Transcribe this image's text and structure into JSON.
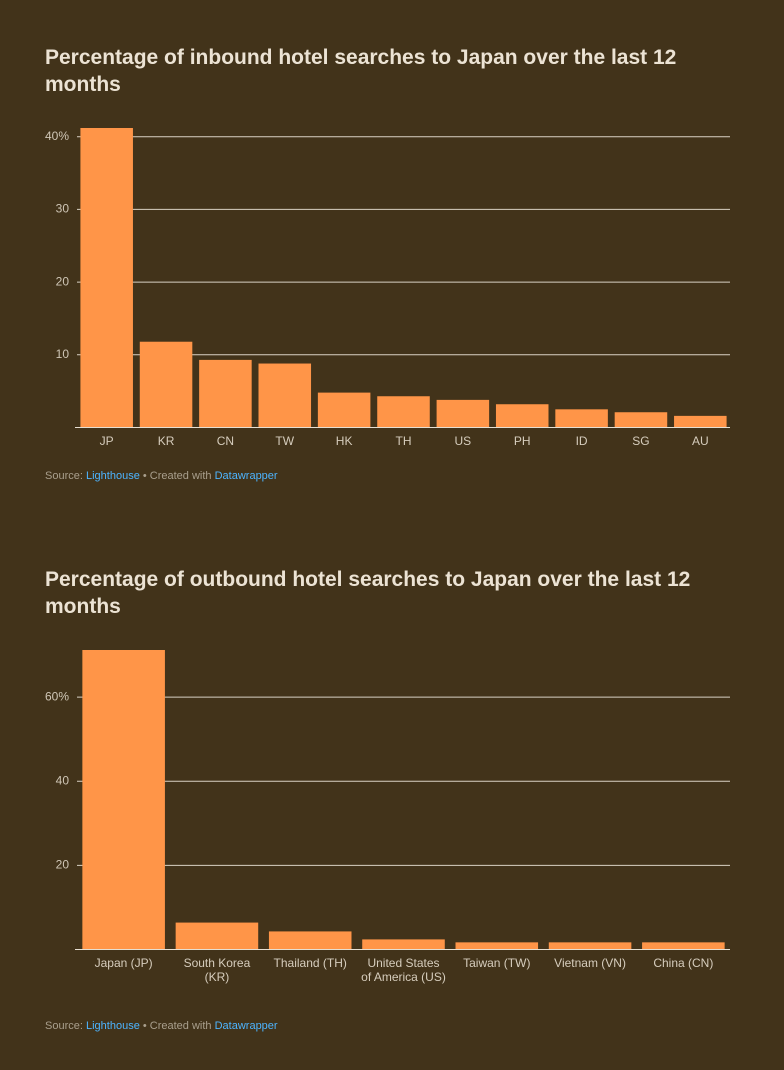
{
  "chart_data": [
    {
      "type": "bar",
      "title": "Percentage of inbound hotel searches to Japan over the last 12 months",
      "categories": [
        "JP",
        "KR",
        "CN",
        "TW",
        "HK",
        "TH",
        "US",
        "PH",
        "ID",
        "SG",
        "AU"
      ],
      "values": [
        41.2,
        11.8,
        9.3,
        8.8,
        4.8,
        4.3,
        3.8,
        3.2,
        2.5,
        2.1,
        1.6
      ],
      "color": "#ff9548",
      "ylim": [
        0,
        41.2
      ],
      "yticks": [
        {
          "value": 40,
          "label": "40%"
        },
        30,
        20,
        10
      ],
      "grid": true,
      "footer": {
        "source_label": "Source:",
        "source": "Lighthouse",
        "credit_label": "• Created with",
        "credit": "Datawrapper"
      }
    },
    {
      "type": "bar",
      "title": "Percentage of outbound hotel searches to Japan over the last 12 months",
      "categories": [
        "Japan (JP)",
        "South Korea (KR)",
        "Thailand (TH)",
        "United States of America (US)",
        "Taiwan (TW)",
        "Vietnam (VN)",
        "China (CN)"
      ],
      "values": [
        71.2,
        6.4,
        4.3,
        2.4,
        1.7,
        1.7,
        1.7
      ],
      "color": "#ff9548",
      "ylim": [
        0,
        71.2
      ],
      "yticks": [
        {
          "value": 60,
          "label": "60%"
        },
        40,
        20
      ],
      "grid": true,
      "footer": {
        "source_label": "Source:",
        "source": "Lighthouse",
        "credit_label": "• Created with",
        "credit": "Datawrapper"
      }
    }
  ]
}
